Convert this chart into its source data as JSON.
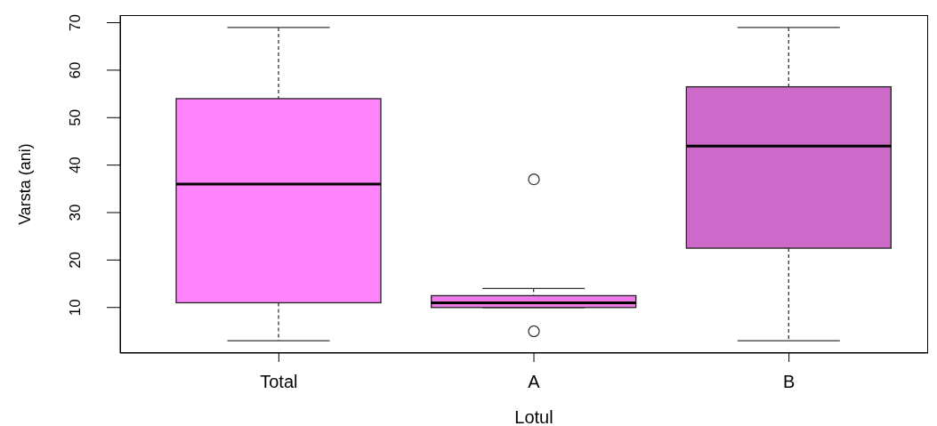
{
  "chart_data": {
    "type": "box",
    "xlabel": "Lotul",
    "ylabel": "Varsta (ani)",
    "categories": [
      "Total",
      "A",
      "B"
    ],
    "boxes": [
      {
        "low": 3,
        "q1": 11,
        "median": 36,
        "q3": 54,
        "high": 69
      },
      {
        "low": 10,
        "q1": 10,
        "median": 11,
        "q3": 12.5,
        "high": 14,
        "outliers": [
          37,
          5
        ]
      },
      {
        "low": 3,
        "q1": 22.5,
        "median": 44,
        "q3": 56.5,
        "high": 69
      }
    ],
    "colors": [
      "#ff83fa",
      "#ee7ae9",
      "#cd69c9"
    ],
    "ylim": [
      0.4,
      71.6
    ],
    "yticks": [
      10,
      20,
      30,
      40,
      50,
      60,
      70
    ]
  }
}
